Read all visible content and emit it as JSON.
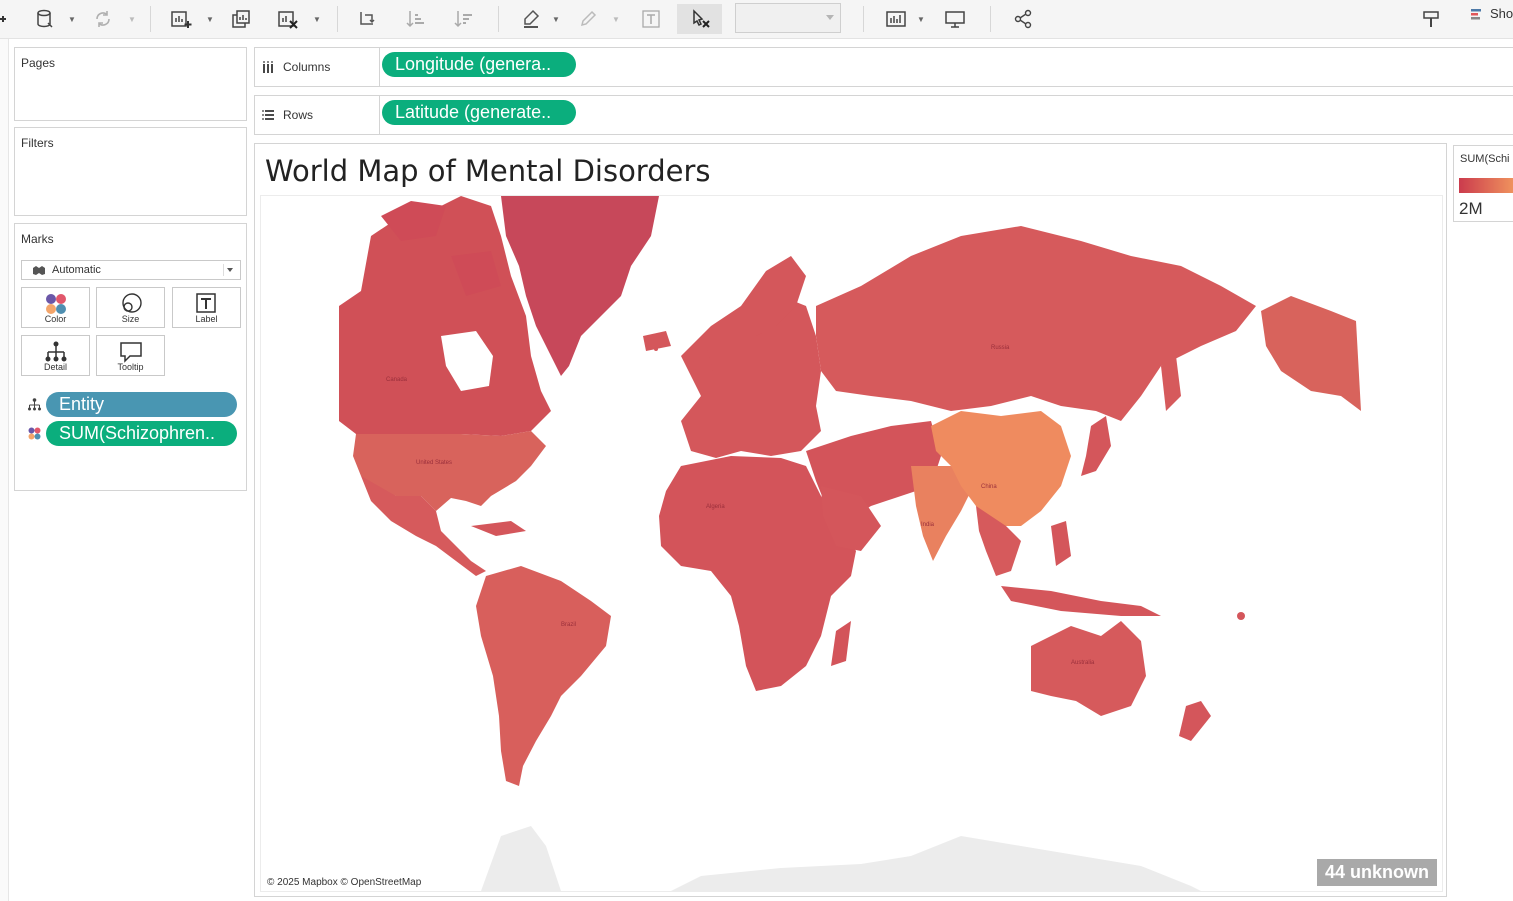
{
  "toolbar": {
    "icons": [
      "datasource-icon",
      "refresh-icon",
      "new-worksheet-icon",
      "duplicate-sheet-icon",
      "clear-sheet-icon",
      "swap-icon",
      "sort-asc-icon",
      "sort-desc-icon",
      "highlight-icon",
      "group-icon",
      "label-icon",
      "pin-icon",
      "show-cards-icon",
      "presentation-icon",
      "share-icon",
      "format-icon"
    ],
    "show_me_label": "Sho"
  },
  "cards": {
    "pages_title": "Pages",
    "filters_title": "Filters",
    "marks_title": "Marks",
    "mark_type": "Automatic",
    "buttons": {
      "color": "Color",
      "size": "Size",
      "label": "Label",
      "detail": "Detail",
      "tooltip": "Tooltip"
    },
    "mark_fields": {
      "detail_field": "Entity",
      "color_field": "SUM(Schizophren.."
    }
  },
  "shelves": {
    "columns_label": "Columns",
    "columns_pill": "Longitude (genera..",
    "rows_label": "Rows",
    "rows_pill": "Latitude (generate.."
  },
  "view": {
    "title": "World Map of Mental Disorders",
    "credit": "© 2025 Mapbox © OpenStreetMap",
    "unknown_badge": "44 unknown",
    "country_labels": [
      "Canada",
      "United States",
      "Brazil",
      "Russia",
      "China",
      "India",
      "Australia",
      "Algeria"
    ]
  },
  "legend": {
    "title": "SUM(Schi",
    "max_label": "2M",
    "color_low": "#cb3b4d",
    "color_high": "#f39b5f"
  },
  "colors": {
    "pill_green": "#0bae7d",
    "pill_blue": "#4996b2",
    "map_default": "#d4565b",
    "map_high": "#ef8a5f"
  }
}
